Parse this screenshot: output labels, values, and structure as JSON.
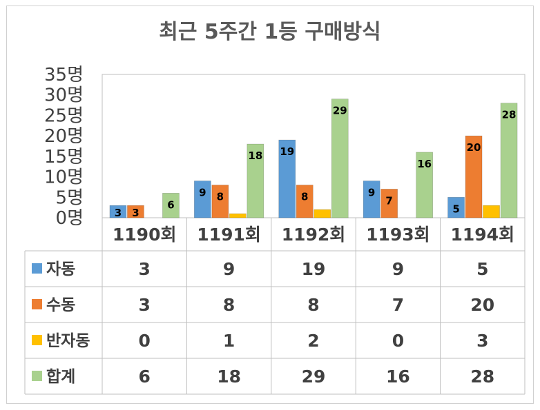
{
  "chart_data": {
    "type": "bar",
    "title": "최근 5주간 1등 구매방식",
    "categories": [
      "1190회",
      "1191회",
      "1192회",
      "1193회",
      "1194회"
    ],
    "y_ticks": [
      "0명",
      "5명",
      "10명",
      "15명",
      "20명",
      "25명",
      "30명",
      "35명"
    ],
    "ylim": [
      0,
      35
    ],
    "grid": false,
    "legend": "data-table",
    "series": [
      {
        "name": "자동",
        "color": "#5b9bd5",
        "values": [
          3,
          9,
          19,
          9,
          5
        ]
      },
      {
        "name": "수동",
        "color": "#ed7d31",
        "values": [
          3,
          8,
          8,
          7,
          20
        ]
      },
      {
        "name": "반자동",
        "color": "#ffc000",
        "values": [
          0,
          1,
          2,
          0,
          3
        ]
      },
      {
        "name": "합계",
        "color": "#a9d18e",
        "values": [
          6,
          18,
          29,
          16,
          28
        ]
      }
    ],
    "data_labels": [
      [
        3,
        9,
        19,
        9,
        5
      ],
      [
        3,
        8,
        8,
        7,
        20
      ],
      [
        null,
        null,
        null,
        null,
        null
      ],
      [
        6,
        18,
        29,
        16,
        28
      ]
    ]
  }
}
